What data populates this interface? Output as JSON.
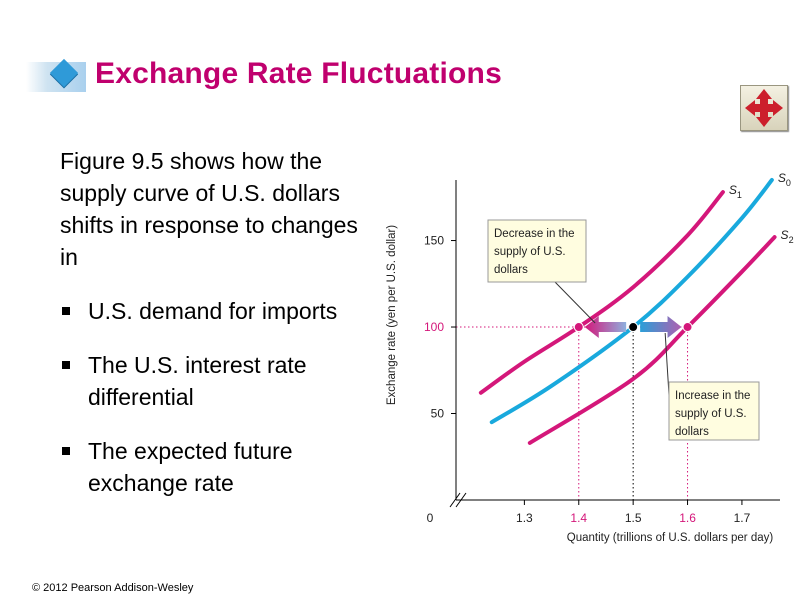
{
  "slide": {
    "title": "Exchange Rate Fluctuations",
    "intro": "Figure 9.5 shows how the supply curve of U.S. dollars shifts in response to changes in",
    "bullets": [
      "U.S. demand for imports",
      "The U.S. interest rate differential",
      "The expected future exchange rate"
    ],
    "copyright": "© 2012 Pearson Addison-Wesley",
    "nav_icon": "four-way-arrow-icon"
  },
  "chart_data": {
    "type": "line",
    "xlabel": "Quantity (trillions of U.S. dollars per day)",
    "ylabel": "Exchange rate (yen per U.S. dollar)",
    "x_ticks": [
      "0",
      "1.3",
      "1.4",
      "1.5",
      "1.6",
      "1.7"
    ],
    "highlighted_x_ticks": [
      "1.4",
      "1.6"
    ],
    "y_ticks": [
      "50",
      "100",
      "150"
    ],
    "highlighted_y_ticks": [
      "100"
    ],
    "xlim": [
      1.2,
      1.77
    ],
    "ylim": [
      0,
      185
    ],
    "axis_break": true,
    "series": [
      {
        "name": "S",
        "sub": "1",
        "color": "#d4177a",
        "x": [
          1.22,
          1.3,
          1.4,
          1.5,
          1.6,
          1.665
        ],
        "y": [
          62,
          80,
          100,
          123,
          153,
          178
        ]
      },
      {
        "name": "S",
        "sub": "0",
        "color": "#19a9dd",
        "x": [
          1.24,
          1.35,
          1.5,
          1.6,
          1.7,
          1.755
        ],
        "y": [
          45,
          66,
          100,
          129,
          163,
          185
        ]
      },
      {
        "name": "S",
        "sub": "2",
        "color": "#d4177a",
        "x": [
          1.31,
          1.5,
          1.6,
          1.7,
          1.76
        ],
        "y": [
          33,
          70,
          100,
          132,
          152
        ]
      }
    ],
    "points": [
      {
        "x": 1.4,
        "y": 100,
        "color": "#d4177a"
      },
      {
        "x": 1.5,
        "y": 100,
        "color": "#000000"
      },
      {
        "x": 1.6,
        "y": 100,
        "color": "#d4177a"
      }
    ],
    "annotations": [
      {
        "text": [
          "Decrease in the",
          "supply of U.S.",
          "dollars"
        ]
      },
      {
        "text": [
          "Increase in the",
          "supply of U.S.",
          "dollars"
        ]
      }
    ],
    "colors": {
      "accent": "#c0006e",
      "curve_pink": "#d4177a",
      "curve_blue": "#19a9dd"
    }
  }
}
